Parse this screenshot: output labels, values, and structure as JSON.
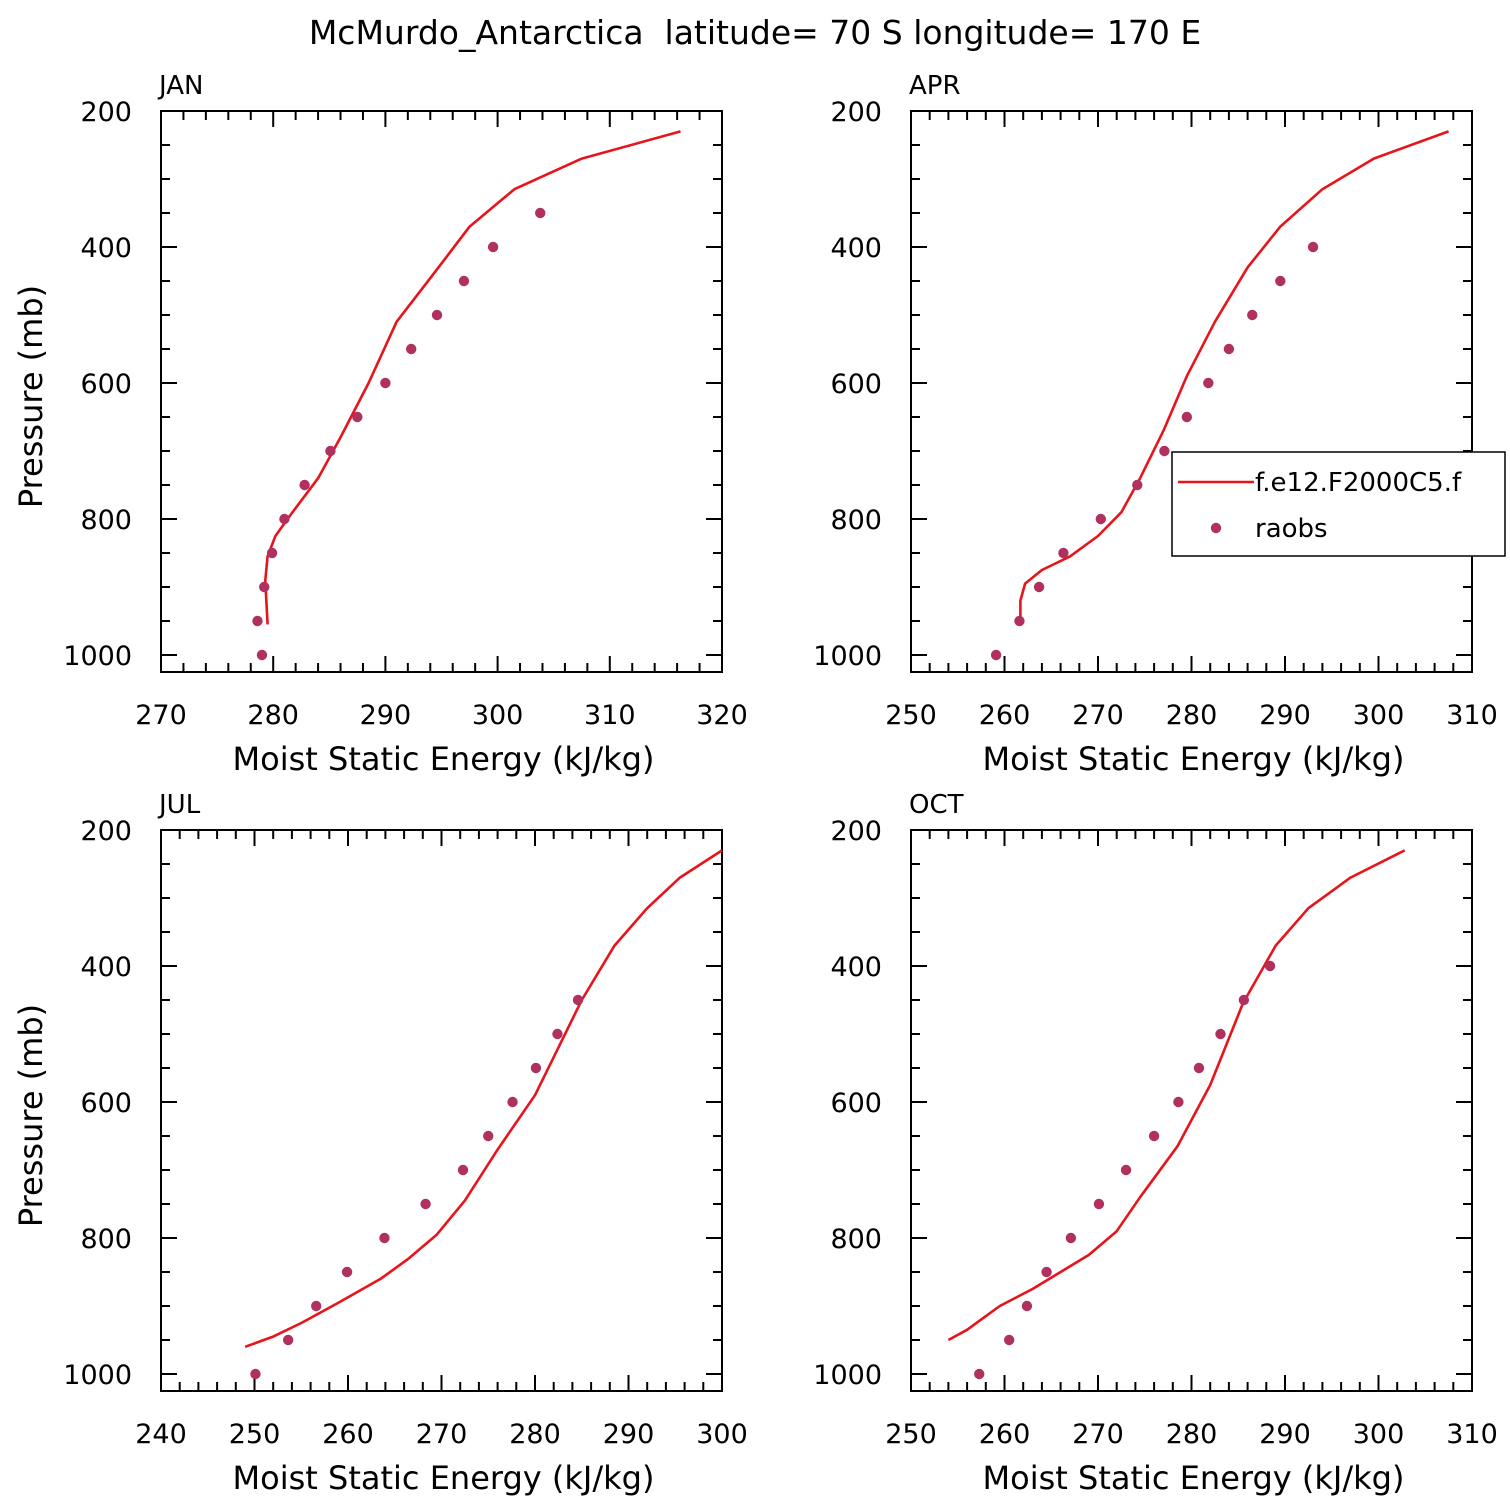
{
  "title": "McMurdo_Antarctica  latitude= 70 S longitude= 170 E",
  "colors": {
    "model_line": "#e8141c",
    "raobs_marker": "#b03060",
    "axis": "#000000"
  },
  "legend": {
    "placement": "inside APR panel, right edge",
    "entries": [
      {
        "label": "f.e12.F2000C5.f",
        "kind": "line"
      },
      {
        "label": "raobs",
        "kind": "marker"
      }
    ]
  },
  "chart_data": [
    {
      "type": "line+scatter",
      "panel": "JAN",
      "xlabel": "Moist Static Energy (kJ/kg)",
      "ylabel": "Pressure (mb)",
      "xlim": [
        270,
        320
      ],
      "ylim": [
        1025,
        200
      ],
      "yreversed": true,
      "xticks": [
        270,
        280,
        290,
        300,
        310,
        320
      ],
      "yticks": [
        200,
        400,
        600,
        800,
        1000
      ],
      "series": [
        {
          "name": "f.e12.F2000C5.f",
          "kind": "line",
          "x": [
            279.5,
            279.4,
            279.3,
            279.5,
            280.2,
            281.5,
            284,
            286,
            288.5,
            291,
            294.5,
            297.5,
            301.5,
            307.5,
            316.3
          ],
          "y": [
            955,
            925,
            890,
            855,
            825,
            795,
            740,
            680,
            600,
            510,
            435,
            370,
            315,
            270,
            230
          ]
        },
        {
          "name": "raobs",
          "kind": "scatter",
          "x": [
            279,
            278.6,
            279.2,
            279.9,
            281,
            282.8,
            285.1,
            287.5,
            290,
            292.3,
            294.6,
            297,
            299.6,
            303.8
          ],
          "y": [
            1000,
            950,
            900,
            850,
            800,
            750,
            700,
            650,
            600,
            550,
            500,
            450,
            400,
            350
          ]
        }
      ]
    },
    {
      "type": "line+scatter",
      "panel": "APR",
      "xlabel": "Moist Static Energy (kJ/kg)",
      "ylabel": "",
      "xlim": [
        250,
        310
      ],
      "ylim": [
        1025,
        200
      ],
      "yreversed": true,
      "xticks": [
        250,
        260,
        270,
        280,
        290,
        300,
        310
      ],
      "yticks": [
        200,
        400,
        600,
        800,
        1000
      ],
      "series": [
        {
          "name": "f.e12.F2000C5.f",
          "kind": "line",
          "x": [
            261.7,
            261.7,
            262.2,
            264,
            267,
            270,
            272.5,
            274.5,
            277,
            279.5,
            282.5,
            286,
            289.5,
            294,
            299.5,
            307.5
          ],
          "y": [
            950,
            920,
            895,
            875,
            855,
            825,
            790,
            740,
            670,
            590,
            510,
            430,
            370,
            315,
            270,
            230
          ]
        },
        {
          "name": "raobs",
          "kind": "scatter",
          "x": [
            259.1,
            261.6,
            263.7,
            266.3,
            270.3,
            274.2,
            277.1,
            279.5,
            281.8,
            284,
            286.5,
            289.5,
            293
          ],
          "y": [
            1000,
            950,
            900,
            850,
            800,
            750,
            700,
            650,
            600,
            550,
            500,
            450,
            400
          ]
        }
      ]
    },
    {
      "type": "line+scatter",
      "panel": "JUL",
      "xlabel": "Moist Static Energy (kJ/kg)",
      "ylabel": "Pressure (mb)",
      "xlim": [
        240,
        300
      ],
      "ylim": [
        1025,
        200
      ],
      "yreversed": true,
      "xticks": [
        240,
        250,
        260,
        270,
        280,
        290,
        300
      ],
      "yticks": [
        200,
        400,
        600,
        800,
        1000
      ],
      "series": [
        {
          "name": "f.e12.F2000C5.f",
          "kind": "line",
          "x": [
            249,
            252,
            255,
            259,
            263.5,
            266.5,
            269.5,
            272.5,
            276,
            280,
            285,
            288.5,
            292,
            295.5,
            300
          ],
          "y": [
            960,
            945,
            925,
            895,
            860,
            830,
            795,
            745,
            670,
            590,
            450,
            370,
            315,
            270,
            230
          ]
        },
        {
          "name": "raobs",
          "kind": "scatter",
          "x": [
            250.1,
            253.6,
            256.6,
            259.9,
            263.9,
            268.3,
            272.3,
            275,
            277.6,
            280.1,
            282.4,
            284.6
          ],
          "y": [
            1000,
            950,
            900,
            850,
            800,
            750,
            700,
            650,
            600,
            550,
            500,
            450
          ]
        }
      ]
    },
    {
      "type": "line+scatter",
      "panel": "OCT",
      "xlabel": "Moist Static Energy (kJ/kg)",
      "ylabel": "",
      "xlim": [
        250,
        310
      ],
      "ylim": [
        1025,
        200
      ],
      "yreversed": true,
      "xticks": [
        250,
        260,
        270,
        280,
        290,
        300,
        310
      ],
      "yticks": [
        200,
        400,
        600,
        800,
        1000
      ],
      "series": [
        {
          "name": "f.e12.F2000C5.f",
          "kind": "line",
          "x": [
            254,
            256,
            257.5,
            259.5,
            263,
            266,
            269,
            272,
            274.5,
            278.5,
            282,
            285.5,
            289,
            292.5,
            297,
            302.8
          ],
          "y": [
            950,
            935,
            920,
            900,
            875,
            850,
            825,
            790,
            740,
            665,
            575,
            455,
            370,
            315,
            270,
            230
          ]
        },
        {
          "name": "raobs",
          "kind": "scatter",
          "x": [
            257.3,
            260.5,
            262.4,
            264.5,
            267.1,
            270.1,
            273,
            276,
            278.6,
            280.8,
            283.1,
            285.6,
            288.4
          ],
          "y": [
            1000,
            950,
            900,
            850,
            800,
            750,
            700,
            650,
            600,
            550,
            500,
            450,
            400
          ]
        }
      ]
    }
  ]
}
